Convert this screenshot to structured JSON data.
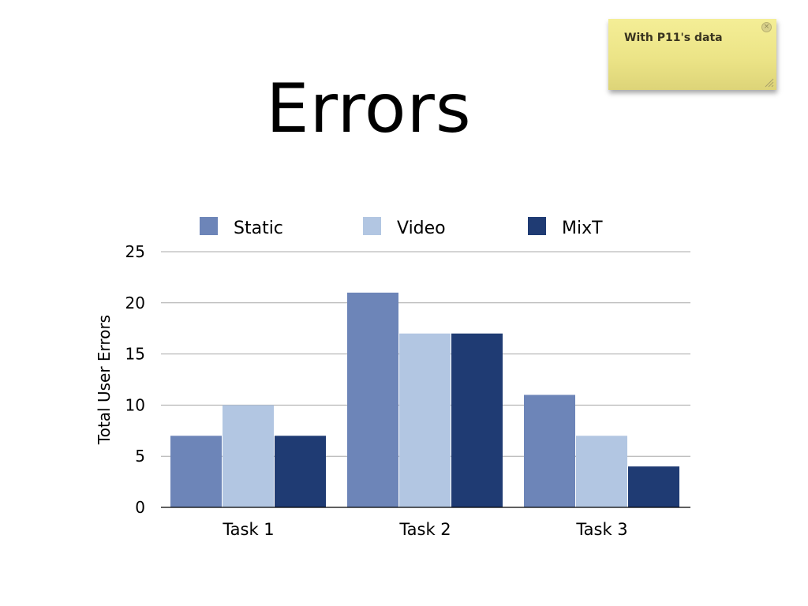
{
  "slide": {
    "title": "Errors"
  },
  "sticky_note": {
    "text": "With P11's data"
  },
  "chart_data": {
    "type": "bar",
    "categories": [
      "Task 1",
      "Task 2",
      "Task 3"
    ],
    "series": [
      {
        "name": "Static",
        "values": [
          7,
          21,
          11
        ],
        "color": "#6d85b8"
      },
      {
        "name": "Video",
        "values": [
          10,
          17,
          7
        ],
        "color": "#b2c6e2"
      },
      {
        "name": "MixT",
        "values": [
          7,
          17,
          4
        ],
        "color": "#1f3b73"
      }
    ],
    "ylabel": "Total User Errors",
    "xlabel": "",
    "ylim": [
      0,
      25
    ],
    "yticks": [
      0,
      5,
      10,
      15,
      20,
      25
    ],
    "grid": true,
    "legend_position": "top"
  }
}
